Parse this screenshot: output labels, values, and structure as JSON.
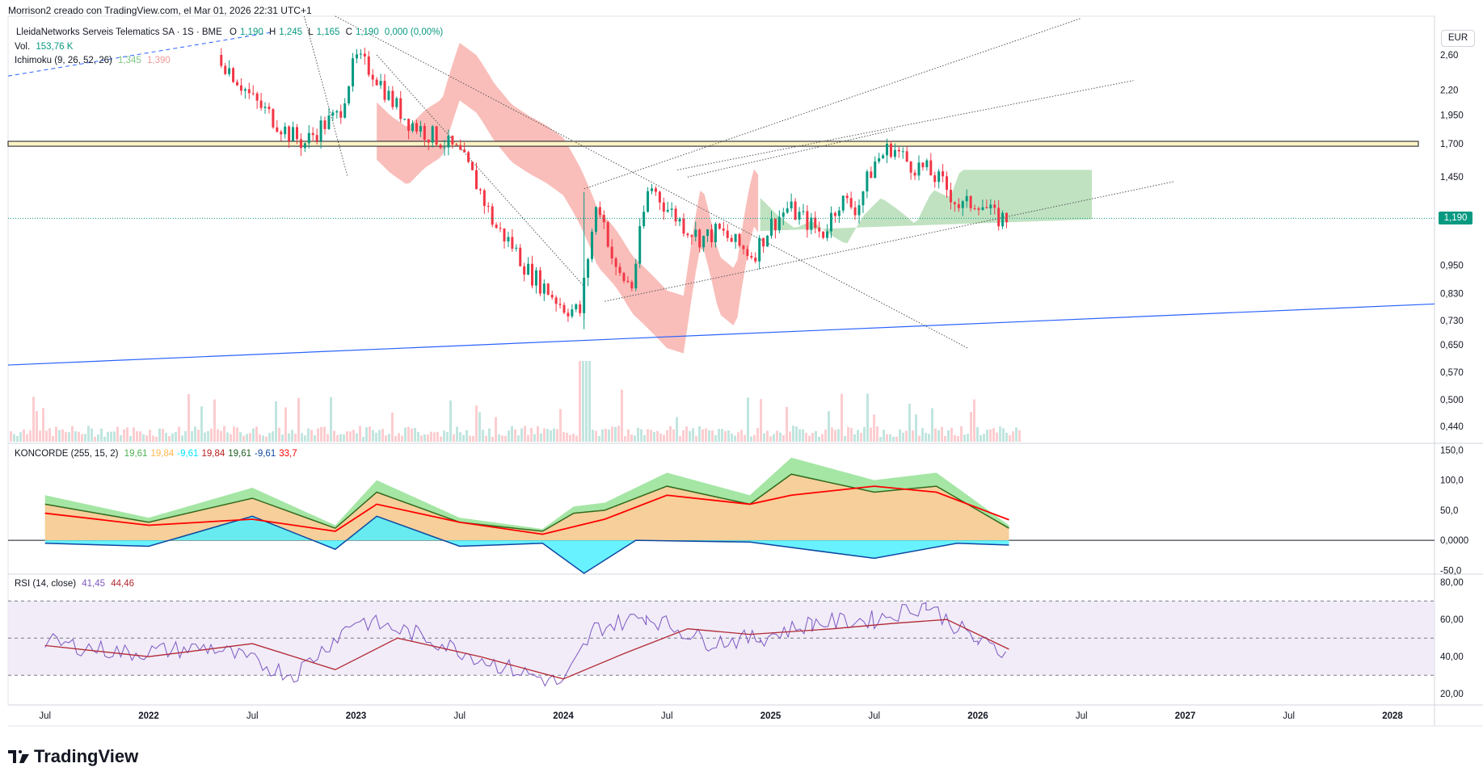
{
  "header": "Morrison2 creado con TradingView.com, el Mar 01, 2026 22:31 UTC+1",
  "currency": "EUR",
  "main_legend": {
    "symbol": "LleidaNetworks Serveis Telematics SA · 1S · BME",
    "open_label": "O",
    "open": "1,190",
    "high_label": "H",
    "high": "1,245",
    "low_label": "L",
    "low": "1,165",
    "close_label": "C",
    "close": "1,190",
    "change": "0,000 (0,00%)",
    "vol_label": "Vol.",
    "vol": "153,76 K",
    "ichimoku_label": "Ichimoku (9, 26, 52, 26)",
    "ichimoku_v1": "1,345",
    "ichimoku_v2": "1,390"
  },
  "last_price": "1,190",
  "koncorde_legend": {
    "label": "KONCORDE (255, 15, 2)",
    "values": [
      {
        "text": "19,61",
        "color": "#4caf50"
      },
      {
        "text": "19,84",
        "color": "#ffb74d"
      },
      {
        "text": "-9,61",
        "color": "#00e5ff"
      },
      {
        "text": "19,84",
        "color": "#b71c1c"
      },
      {
        "text": "19,61",
        "color": "#1b5e20"
      },
      {
        "text": "-9,61",
        "color": "#0d47a1"
      },
      {
        "text": "33,7",
        "color": "#ff0000"
      }
    ]
  },
  "rsi_legend": {
    "label": "RSI (14, close)",
    "v1": "41,45",
    "v1_color": "#7e57c2",
    "v2": "44,46",
    "v2_color": "#b22833"
  },
  "branding": "TradingView",
  "colors": {
    "up": "#089981",
    "down": "#f23645",
    "accent": "#2962ff",
    "cloud_bull": "#a5d6a7",
    "cloud_bear": "#f7a8a3",
    "koncorde_orange": "#ffcc99",
    "koncorde_green": "#8ee08e",
    "koncorde_blue": "#4df0ff",
    "rsi_line": "#7e57c2",
    "rsi_ma": "#b22833",
    "rsi_band": "#ede7f6"
  },
  "chart_data": [
    {
      "type": "candlestick",
      "title": "LleidaNetworks Serveis Telematics SA · 1S · BME",
      "y_scale": "log",
      "y_ticks": [
        "2,60",
        "2,20",
        "1,950",
        "1,700",
        "1,450",
        "1,190",
        "0,950",
        "0,830",
        "0,730",
        "0,650",
        "0,570",
        "0,500",
        "0,440"
      ],
      "x_ticks": [
        "Jul",
        "2022",
        "Jul",
        "2023",
        "Jul",
        "2024",
        "Jul",
        "2025",
        "Jul",
        "2026",
        "Jul",
        "2027",
        "Jul",
        "2028"
      ],
      "price_path": [
        [
          "2022-05",
          2.6
        ],
        [
          "2022-06",
          2.35
        ],
        [
          "2022-07",
          2.1
        ],
        [
          "2022-08",
          1.95
        ],
        [
          "2022-09",
          1.8
        ],
        [
          "2022-10",
          1.7
        ],
        [
          "2022-11",
          1.85
        ],
        [
          "2022-12",
          1.95
        ],
        [
          "2023-01",
          2.55
        ],
        [
          "2023-02",
          2.4
        ],
        [
          "2023-03",
          2.1
        ],
        [
          "2023-04",
          1.9
        ],
        [
          "2023-05",
          1.8
        ],
        [
          "2023-06",
          1.72
        ],
        [
          "2023-07",
          1.62
        ],
        [
          "2023-08",
          1.4
        ],
        [
          "2023-09",
          1.15
        ],
        [
          "2023-10",
          1.05
        ],
        [
          "2023-11",
          0.92
        ],
        [
          "2023-12",
          0.85
        ],
        [
          "2024-01",
          0.78
        ],
        [
          "2024-02",
          0.76
        ],
        [
          "2024-03",
          1.3
        ],
        [
          "2024-04",
          0.92
        ],
        [
          "2024-05",
          0.86
        ],
        [
          "2024-06",
          1.4
        ],
        [
          "2024-07",
          1.25
        ],
        [
          "2024-08",
          1.15
        ],
        [
          "2024-09",
          1.08
        ],
        [
          "2024-10",
          1.12
        ],
        [
          "2024-11",
          1.05
        ],
        [
          "2024-12",
          1.0
        ],
        [
          "2025-01",
          1.15
        ],
        [
          "2025-02",
          1.25
        ],
        [
          "2025-03",
          1.18
        ],
        [
          "2025-04",
          1.1
        ],
        [
          "2025-05",
          1.3
        ],
        [
          "2025-06",
          1.25
        ],
        [
          "2025-07",
          1.55
        ],
        [
          "2025-08",
          1.68
        ],
        [
          "2025-09",
          1.55
        ],
        [
          "2025-10",
          1.5
        ],
        [
          "2025-11",
          1.4
        ],
        [
          "2025-12",
          1.25
        ],
        [
          "2026-01",
          1.3
        ],
        [
          "2026-02",
          1.19
        ]
      ],
      "resistance_zone": [
        1.68,
        1.72
      ],
      "volume_series": "Vol."
    },
    {
      "type": "area",
      "title": "KONCORDE (255, 15, 2)",
      "y_ticks": [
        "150,0",
        "100,0",
        "50,0",
        "0,0000",
        "-50,0"
      ],
      "ylim": [
        -55,
        160
      ],
      "series": [
        {
          "name": "orange",
          "values": [
            [
              2021.5,
              60
            ],
            [
              2022.0,
              30
            ],
            [
              2022.5,
              70
            ],
            [
              2022.9,
              20
            ],
            [
              2023.1,
              80
            ],
            [
              2023.5,
              30
            ],
            [
              2023.9,
              15
            ],
            [
              2024.05,
              45
            ],
            [
              2024.2,
              50
            ],
            [
              2024.5,
              90
            ],
            [
              2024.9,
              60
            ],
            [
              2025.1,
              110
            ],
            [
              2025.5,
              80
            ],
            [
              2025.8,
              90
            ],
            [
              2026.0,
              50
            ],
            [
              2026.15,
              20
            ]
          ]
        },
        {
          "name": "blue",
          "values": [
            [
              2021.5,
              -5
            ],
            [
              2022.0,
              -10
            ],
            [
              2022.5,
              40
            ],
            [
              2022.9,
              -15
            ],
            [
              2023.1,
              40
            ],
            [
              2023.5,
              -10
            ],
            [
              2023.9,
              -5
            ],
            [
              2024.1,
              -55
            ],
            [
              2024.35,
              0
            ],
            [
              2024.9,
              -3
            ],
            [
              2025.5,
              -30
            ],
            [
              2025.9,
              -5
            ],
            [
              2026.15,
              -8
            ]
          ]
        },
        {
          "name": "red",
          "values": [
            [
              2021.5,
              45
            ],
            [
              2022.0,
              25
            ],
            [
              2022.5,
              35
            ],
            [
              2022.9,
              15
            ],
            [
              2023.1,
              60
            ],
            [
              2023.5,
              30
            ],
            [
              2023.9,
              10
            ],
            [
              2024.2,
              35
            ],
            [
              2024.5,
              75
            ],
            [
              2024.9,
              60
            ],
            [
              2025.1,
              75
            ],
            [
              2025.5,
              90
            ],
            [
              2025.8,
              80
            ],
            [
              2026.15,
              34
            ]
          ]
        }
      ]
    },
    {
      "type": "line",
      "title": "RSI (14, close)",
      "y_ticks": [
        "80,00",
        "60,00",
        "40,00",
        "20,00"
      ],
      "ylim": [
        14,
        84
      ],
      "bands": [
        30,
        70
      ],
      "series": [
        {
          "name": "RSI",
          "values": [
            [
              2021.5,
              48
            ],
            [
              2021.9,
              42
            ],
            [
              2022.3,
              45
            ],
            [
              2022.7,
              30
            ],
            [
              2023.0,
              60
            ],
            [
              2023.3,
              52
            ],
            [
              2023.7,
              35
            ],
            [
              2024.0,
              25
            ],
            [
              2024.15,
              55
            ],
            [
              2024.4,
              62
            ],
            [
              2024.7,
              48
            ],
            [
              2024.95,
              50
            ],
            [
              2025.2,
              58
            ],
            [
              2025.5,
              60
            ],
            [
              2025.75,
              68
            ],
            [
              2026.0,
              48
            ],
            [
              2026.15,
              41
            ]
          ]
        },
        {
          "name": "MA",
          "values": [
            [
              2021.5,
              46
            ],
            [
              2022.0,
              40
            ],
            [
              2022.5,
              47
            ],
            [
              2022.9,
              33
            ],
            [
              2023.2,
              50
            ],
            [
              2023.6,
              40
            ],
            [
              2024.0,
              28
            ],
            [
              2024.3,
              42
            ],
            [
              2024.6,
              55
            ],
            [
              2024.9,
              52
            ],
            [
              2025.3,
              55
            ],
            [
              2025.6,
              58
            ],
            [
              2025.85,
              60
            ],
            [
              2026.15,
              44
            ]
          ]
        }
      ]
    }
  ]
}
